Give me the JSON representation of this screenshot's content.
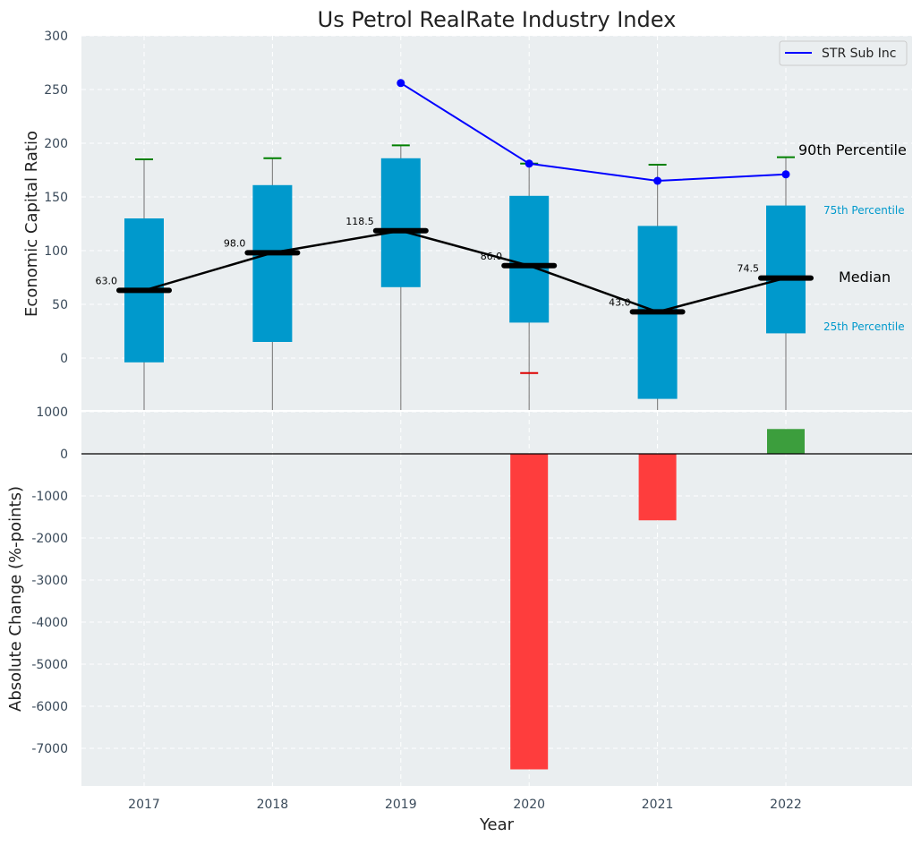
{
  "chart_data": {
    "type": "box",
    "title": "Us Petrol RealRate Industry Index",
    "xlabel": "Year",
    "categories": [
      "2017",
      "2018",
      "2019",
      "2020",
      "2021",
      "2022"
    ],
    "colors": {
      "box": "#0099cc",
      "whisker_line": "#888888",
      "p90_cap": "#008000",
      "p10_cap_low": "#dd0000",
      "median_line": "#000000",
      "series_line": "#0000ff",
      "bar_negative": "#ff3333",
      "bar_positive": "#339933",
      "background": "#eaeef0",
      "grid": "#ffffff"
    },
    "top": {
      "ylabel": "Economic Capital Ratio",
      "ylim": [
        -50,
        300
      ],
      "yticks": [
        0,
        50,
        100,
        150,
        200,
        250,
        300
      ],
      "boxes": [
        {
          "year": "2017",
          "p25": -4,
          "p75": 130,
          "median": 63.0,
          "p90": 185,
          "p10": null
        },
        {
          "year": "2018",
          "p25": 15,
          "p75": 161,
          "median": 98.0,
          "p90": 186,
          "p10": null
        },
        {
          "year": "2019",
          "p25": 66,
          "p75": 186,
          "median": 118.5,
          "p90": 198,
          "p10": null
        },
        {
          "year": "2020",
          "p25": 33,
          "p75": 151,
          "median": 86.0,
          "p90": 181,
          "p10": -14
        },
        {
          "year": "2021",
          "p25": -38,
          "p75": 123,
          "median": 43.0,
          "p90": 180,
          "p10": null
        },
        {
          "year": "2022",
          "p25": 23,
          "p75": 142,
          "median": 74.5,
          "p90": 187,
          "p10": null
        }
      ],
      "median_labels": [
        "63.0",
        "98.0",
        "118.5",
        "86.0",
        "43.0",
        "74.5"
      ],
      "series": [
        {
          "name": "STR Sub Inc",
          "x": [
            "2019",
            "2020",
            "2021",
            "2022"
          ],
          "values": [
            256,
            181,
            165,
            171
          ]
        }
      ],
      "legend": {
        "position": "top-right",
        "label": "STR Sub Inc"
      },
      "annotations": {
        "p90": "90th Percentile",
        "p75": "75th Percentile",
        "median": "Median",
        "p25": "25th Percentile"
      }
    },
    "bottom": {
      "ylabel": "Absolute Change (%-points)",
      "ylim": [
        -7900,
        1000
      ],
      "yticks": [
        1000,
        0,
        -1000,
        -2000,
        -3000,
        -4000,
        -5000,
        -6000,
        -7000
      ],
      "bars": [
        {
          "year": "2020",
          "value": -7500
        },
        {
          "year": "2021",
          "value": -1580
        },
        {
          "year": "2022",
          "value": 590
        }
      ]
    }
  }
}
